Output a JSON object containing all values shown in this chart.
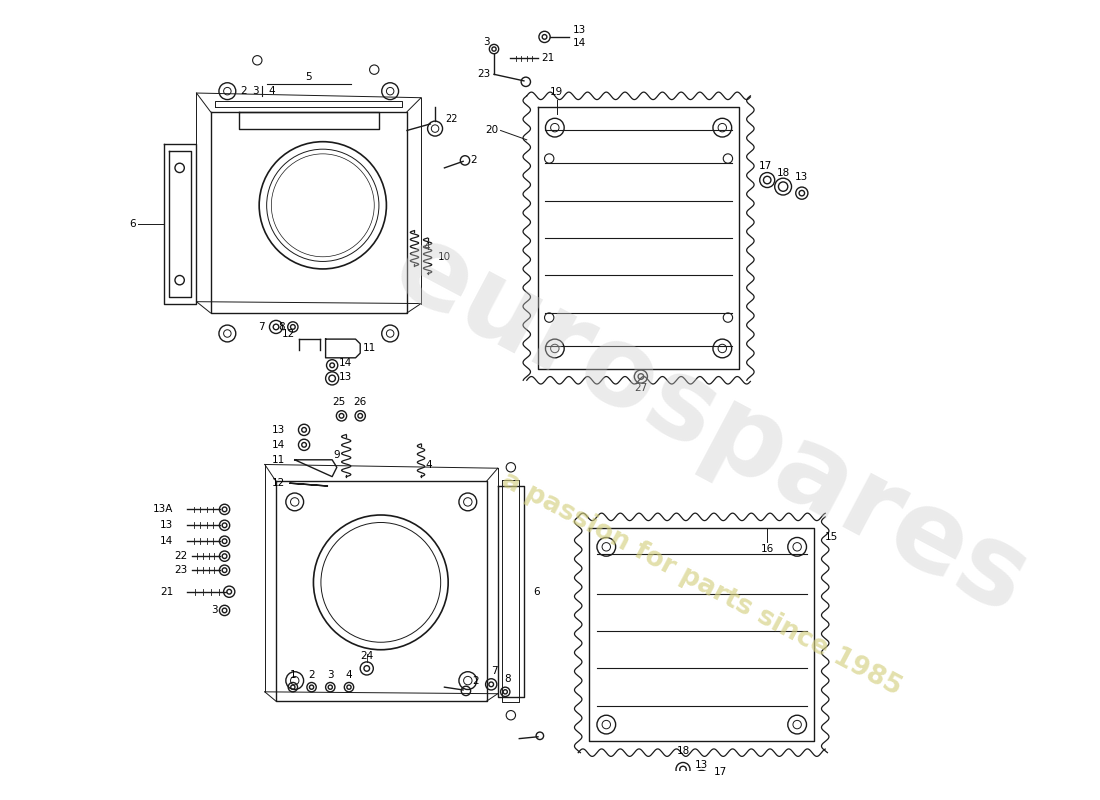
{
  "bg_color": "#ffffff",
  "line_color": "#1a1a1a",
  "label_color": "#000000",
  "watermark1": "eurospares",
  "watermark2": "a passion for parts since 1985",
  "figsize": [
    11,
    8
  ],
  "dpi": 100,
  "lw": 1.0
}
